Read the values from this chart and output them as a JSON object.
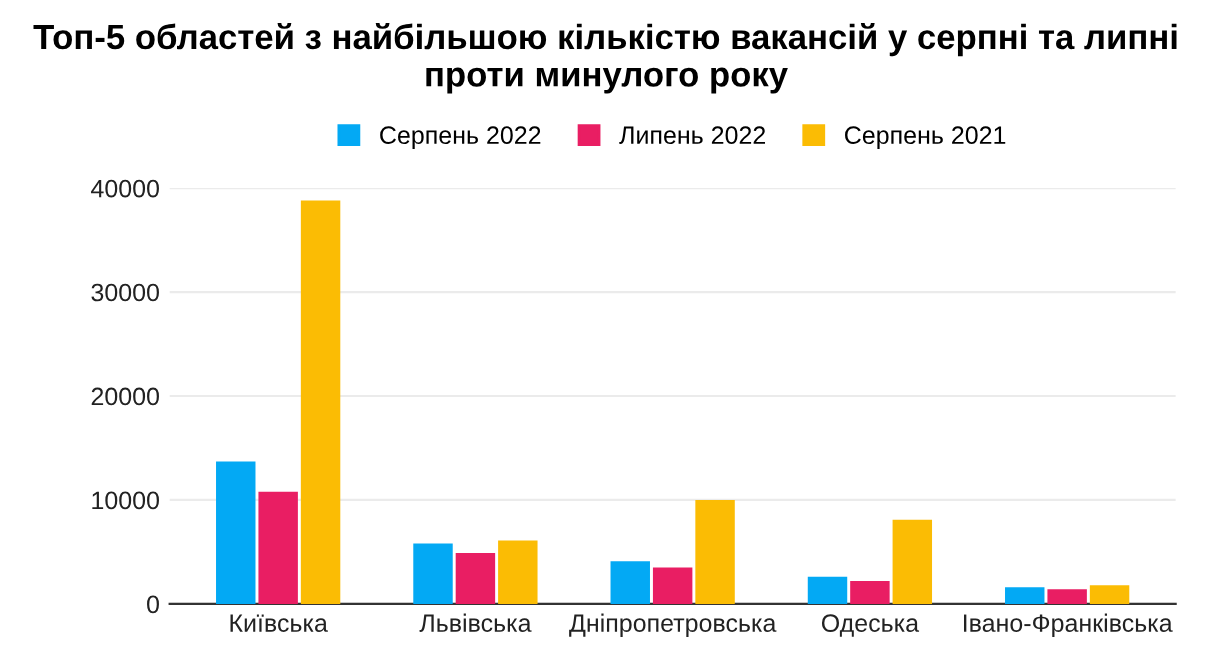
{
  "chart_data": {
    "type": "bar",
    "title": "Топ-5 областей з найбільшою кількістю вакансій у серпні та липні проти минулого року",
    "categories": [
      "Київська",
      "Львівська",
      "Дніпропетровська",
      "Одеська",
      "Івано-Франківська"
    ],
    "series": [
      {
        "name": "Серпень 2022",
        "color": "#03a9f4",
        "values": [
          13700,
          5800,
          4100,
          2600,
          1600
        ]
      },
      {
        "name": "Липень 2022",
        "color": "#e91e63",
        "values": [
          10800,
          4900,
          3500,
          2200,
          1400
        ]
      },
      {
        "name": "Серпень 2021",
        "color": "#fbbc04",
        "values": [
          38800,
          6100,
          10000,
          8100,
          1800
        ]
      }
    ],
    "ylim": [
      0,
      40000
    ],
    "yticks": [
      0,
      10000,
      20000,
      30000,
      40000
    ],
    "grid": "y",
    "legend": "top"
  }
}
